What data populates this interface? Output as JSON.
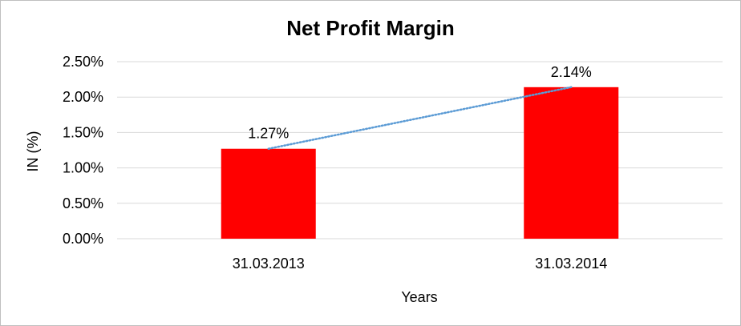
{
  "chart_data": {
    "type": "bar",
    "title": "Net Profit Margin",
    "xlabel": "Years",
    "ylabel": "IN (%)",
    "categories": [
      "31.03.2013",
      "31.03.2014"
    ],
    "values": [
      1.27,
      2.14
    ],
    "data_labels": [
      "1.27%",
      "2.14%"
    ],
    "ylim": [
      0,
      2.5
    ],
    "yticks": [
      0,
      0.5,
      1.0,
      1.5,
      2.0,
      2.5
    ],
    "ytick_labels": [
      "0.00%",
      "0.50%",
      "1.00%",
      "1.50%",
      "2.00%",
      "2.50%"
    ],
    "grid": true,
    "legend": "none",
    "trendline": {
      "type": "linear",
      "style": "dotted",
      "color": "#5b9bd5"
    },
    "colors": {
      "bar": "#ff0000",
      "grid": "#d9d9d9",
      "axis": "#d9d9d9",
      "border": "#bfbfbf"
    }
  }
}
